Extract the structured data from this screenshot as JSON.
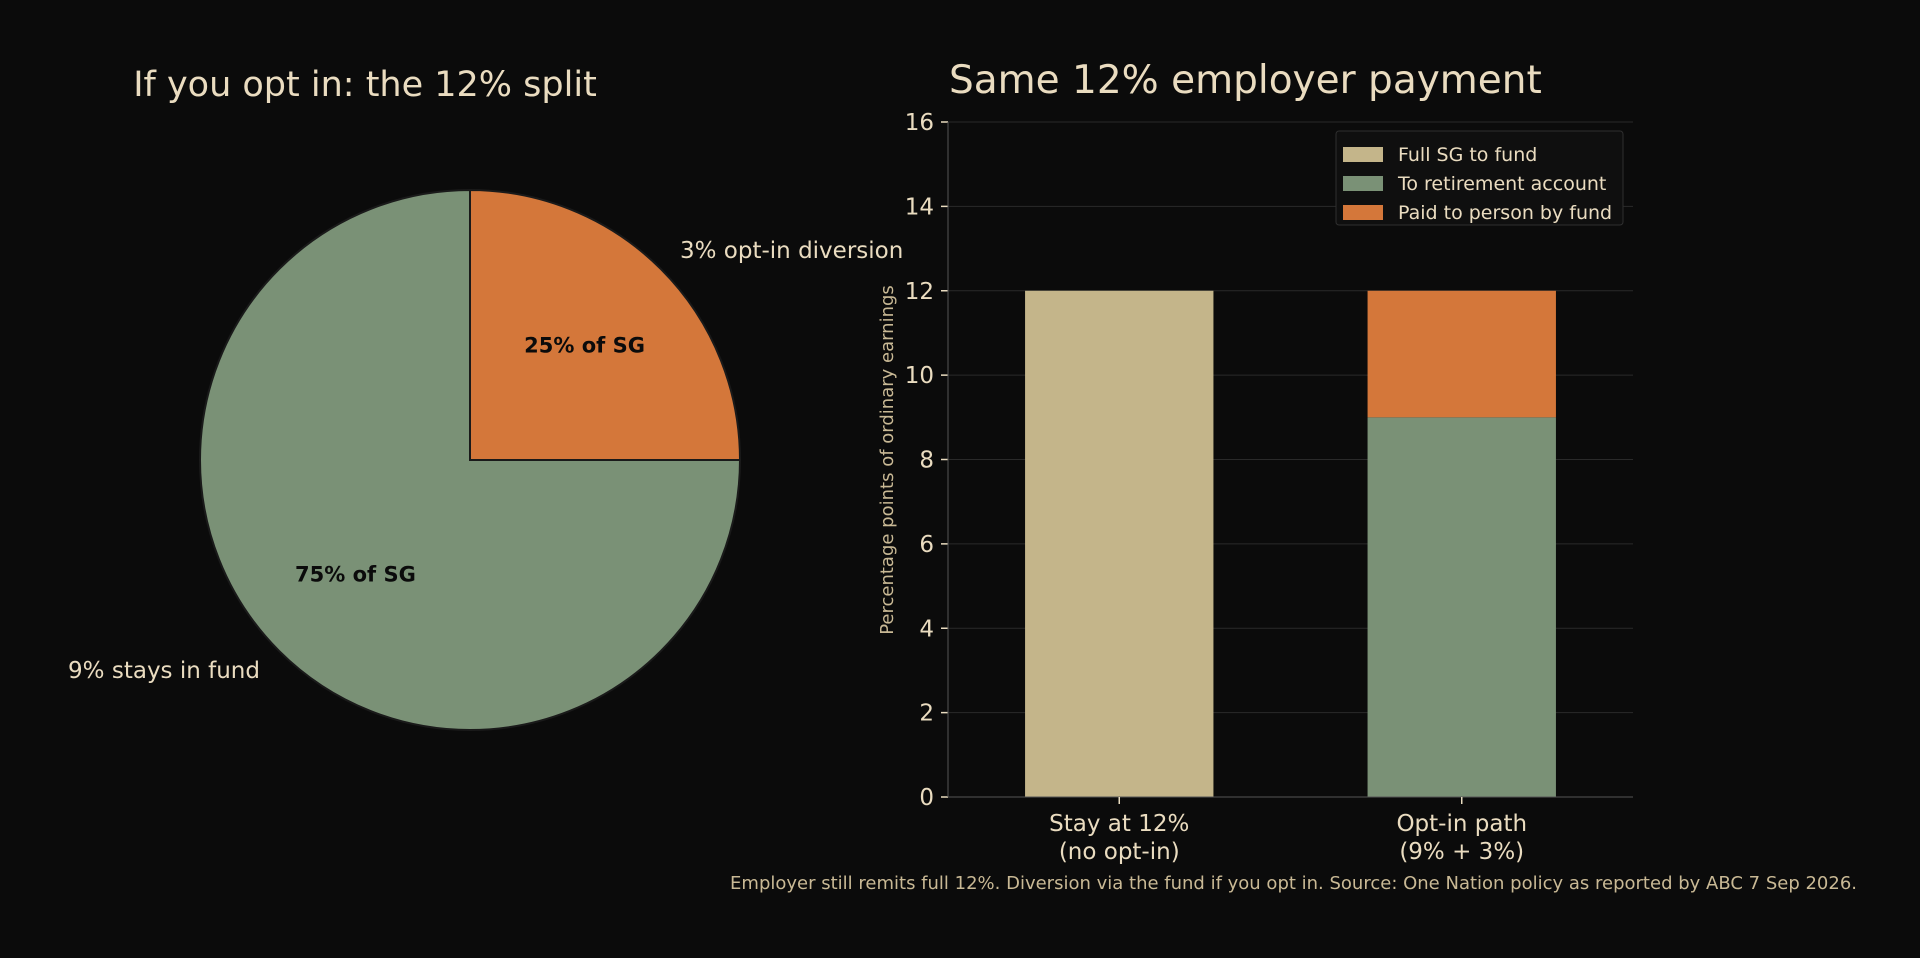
{
  "colors": {
    "background": "#0b0b0b",
    "text": "#eadcc0",
    "muted": "#c9b995",
    "grid": "#2a2a2a",
    "axis": "#555555",
    "beige": "#c4b58a",
    "green": "#7a9176",
    "orange": "#d4773a",
    "slice_label": "#0b0b0b"
  },
  "footnote": "Employer still remits full 12%. Diversion via the fund if you opt in. Source: One Nation policy as reported by ABC 7 Sep 2026.",
  "chart_data": [
    {
      "type": "pie",
      "title": "If you opt in: the 12% split",
      "slices": [
        {
          "label": "3% opt-in diversion",
          "inner_label": "25% of SG",
          "value": 3,
          "color": "#d4773a"
        },
        {
          "label": "9% stays in fund",
          "inner_label": "75% of SG",
          "value": 9,
          "color": "#7a9176"
        }
      ]
    },
    {
      "type": "bar",
      "stacked": true,
      "title": "Same 12% employer payment",
      "ylabel": "Percentage points of ordinary earnings",
      "ylim": [
        0,
        16
      ],
      "yticks": [
        0,
        2,
        4,
        6,
        8,
        10,
        12,
        14,
        16
      ],
      "grid": true,
      "legend_position": "top-right",
      "categories": [
        {
          "line1": "Stay at 12%",
          "line2": "(no opt-in)"
        },
        {
          "line1": "Opt-in path",
          "line2": "(9% + 3%)"
        }
      ],
      "series": [
        {
          "name": "Full SG to fund",
          "values": [
            12,
            0
          ],
          "color": "#c4b58a"
        },
        {
          "name": "To retirement account",
          "values": [
            0,
            9
          ],
          "color": "#7a9176"
        },
        {
          "name": "Paid to person by fund",
          "values": [
            0,
            3
          ],
          "color": "#d4773a"
        }
      ]
    }
  ]
}
